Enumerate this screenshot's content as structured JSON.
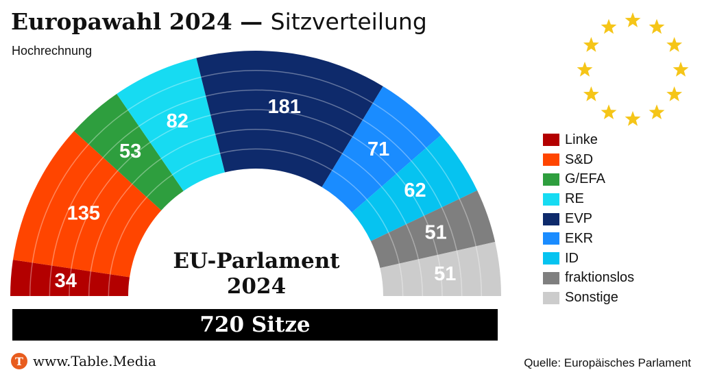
{
  "header": {
    "title_bold": "Europawahl 2024",
    "title_sep": " — ",
    "title_light": "Sitzverteilung",
    "subtitle": "Hochrechnung"
  },
  "center": {
    "line1": "EU-Parlament",
    "line2": "2024"
  },
  "total": "720 Sitze",
  "footer": {
    "logo_letter": "T",
    "site": "www.Table.Media",
    "source": "Quelle: Europäisches Parlament"
  },
  "colors": {
    "stars": "#f5c518"
  },
  "chart_data": {
    "type": "parliament",
    "total_seats": 720,
    "legend_position": "right",
    "series": [
      {
        "name": "Linke",
        "value": 34,
        "color": "#b30000"
      },
      {
        "name": "S&D",
        "value": 135,
        "color": "#ff4500"
      },
      {
        "name": "G/EFA",
        "value": 53,
        "color": "#2e9e3e"
      },
      {
        "name": "RE",
        "value": 82,
        "color": "#17dbf2"
      },
      {
        "name": "EVP",
        "value": 181,
        "color": "#0e2a6b"
      },
      {
        "name": "EKR",
        "value": 71,
        "color": "#1a8cff"
      },
      {
        "name": "ID",
        "value": 62,
        "color": "#06c3f0"
      },
      {
        "name": "fraktionslos",
        "value": 51,
        "color": "#7f7f7f"
      },
      {
        "name": "Sonstige",
        "value": 51,
        "color": "#cccccc"
      }
    ]
  }
}
